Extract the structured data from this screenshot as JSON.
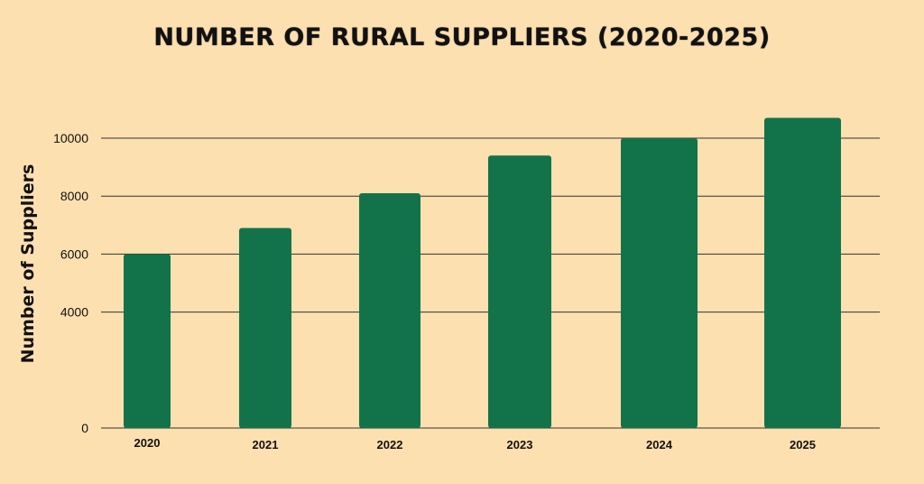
{
  "chart_data": {
    "type": "bar",
    "title": "NUMBER OF RURAL SUPPLIERS (2020-2025)",
    "xlabel": "",
    "ylabel": "Number of Suppliers",
    "categories": [
      "2020",
      "2021",
      "2022",
      "2023",
      "2024",
      "2025"
    ],
    "values": [
      6000,
      6900,
      8100,
      9400,
      10000,
      10700
    ],
    "ylim": [
      0,
      12000
    ],
    "yticks": [
      "0",
      "4000",
      "6000",
      "8000",
      "10000"
    ],
    "ytick_values": [
      0,
      4000,
      6000,
      8000,
      10000
    ],
    "grid": true,
    "legend": "none",
    "colors": {
      "bar": "#12734a",
      "background": "#fde0b0",
      "grid": "#333333",
      "text": "#111111"
    }
  }
}
